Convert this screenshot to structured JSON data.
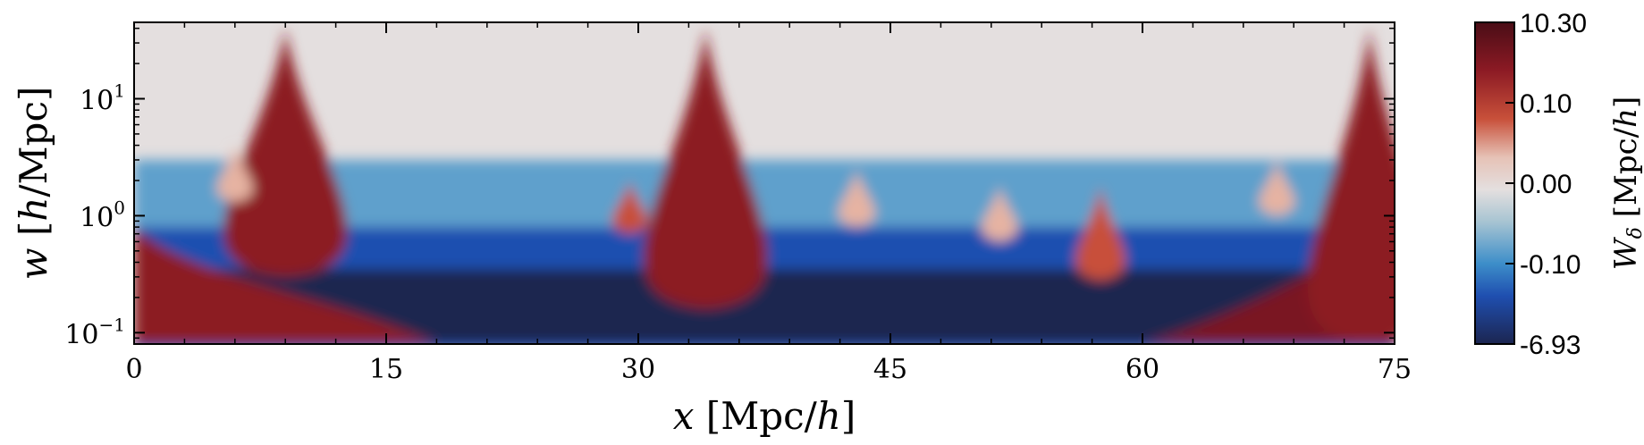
{
  "chart_data": {
    "type": "heatmap",
    "title": "",
    "xlabel": "x [Mpc/h]",
    "ylabel": "w [h/Mpc]",
    "xlim": [
      0,
      75
    ],
    "ylim": [
      0.08,
      45
    ],
    "yscale": "log",
    "x_ticks": [
      {
        "value": 0,
        "label": "0"
      },
      {
        "value": 15,
        "label": "15"
      },
      {
        "value": 30,
        "label": "30"
      },
      {
        "value": 45,
        "label": "45"
      },
      {
        "value": 60,
        "label": "60"
      },
      {
        "value": 75,
        "label": "75"
      }
    ],
    "y_ticks": [
      {
        "value": 0.1,
        "base": "10",
        "exp": "−1"
      },
      {
        "value": 1,
        "base": "10",
        "exp": "0"
      },
      {
        "value": 10,
        "base": "10",
        "exp": "1"
      }
    ],
    "colorbar": {
      "label": "Wδ [Mpc/h]",
      "ticks": [
        "10.30",
        "0.10",
        "0.00",
        "-0.10",
        "-6.93"
      ],
      "colors": [
        "#4a0d16",
        "#8c1a24",
        "#c8503a",
        "#e6c2b6",
        "#e4dfdf",
        "#a7c4d2",
        "#3d8ec9",
        "#1f4fb0",
        "#1c2550"
      ]
    },
    "features": {
      "positive_peaks": [
        {
          "x": 9.0,
          "w_top": 40,
          "w_bottom": 0.3,
          "value": 3.0
        },
        {
          "x": 34.0,
          "w_top": 40,
          "w_bottom": 0.16,
          "value": 4.0
        },
        {
          "x": 73.5,
          "w_top": 40,
          "w_bottom": 0.08,
          "value": 5.0
        },
        {
          "x": 29.5,
          "w_top": 2.0,
          "w_bottom": 0.7,
          "value": 1.0
        },
        {
          "x": 57.5,
          "w_top": 1.8,
          "w_bottom": 0.28,
          "value": 0.6
        },
        {
          "x": 51.5,
          "w_top": 1.8,
          "w_bottom": 0.6,
          "value": 0.4
        },
        {
          "x": 6.0,
          "w_top": 4.0,
          "w_bottom": 1.3,
          "value": 0.5
        },
        {
          "x": 43.0,
          "w_top": 2.5,
          "w_bottom": 0.8,
          "value": 0.3
        },
        {
          "x": 68.0,
          "w_top": 3.0,
          "w_bottom": 1.0,
          "value": 0.3
        }
      ],
      "negative_regions": [
        {
          "x_range": [
            0,
            75
          ],
          "w_range": [
            0.1,
            0.8
          ],
          "value": -3.0
        }
      ]
    }
  }
}
